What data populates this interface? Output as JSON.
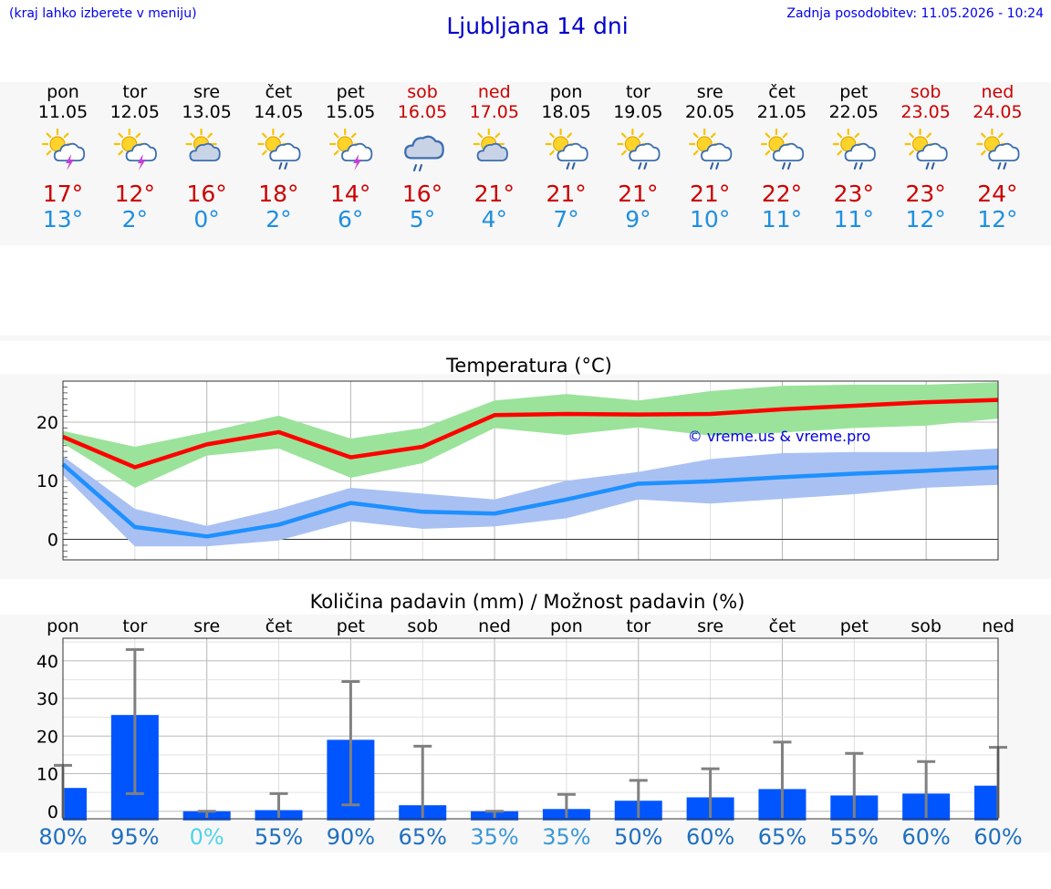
{
  "header": {
    "left_note": "(kraj lahko izberete v meniju)",
    "title": "Ljubljana 14 dni",
    "updated": "Zadnja posodobitev: 11.05.2026 - 10:24"
  },
  "colors": {
    "weekday": "#000000",
    "weekend": "#cc0000",
    "tmax": "#ff0000",
    "tmin": "#1e90ff",
    "tmax_band": "#9be39b",
    "tmin_band": "#a9c1f2",
    "precip_bar": "#0055ff",
    "error_bar": "#808080",
    "pct_dark": "#1f6fbf",
    "pct_mid": "#3b98d6",
    "pct_light": "#4fd3e8"
  },
  "days": [
    {
      "dow": "pon",
      "date": "11.05",
      "weekend": false,
      "icon": "sun-cloud-thunder-icon",
      "tmax": "17°",
      "tmin": "13°"
    },
    {
      "dow": "tor",
      "date": "12.05",
      "weekend": false,
      "icon": "sun-cloud-thunder-icon",
      "tmax": "12°",
      "tmin": "2°"
    },
    {
      "dow": "sre",
      "date": "13.05",
      "weekend": false,
      "icon": "sun-cloud-icon",
      "tmax": "16°",
      "tmin": "0°"
    },
    {
      "dow": "čet",
      "date": "14.05",
      "weekend": false,
      "icon": "sun-cloud-rain-icon",
      "tmax": "18°",
      "tmin": "2°"
    },
    {
      "dow": "pet",
      "date": "15.05",
      "weekend": false,
      "icon": "sun-cloud-thunder-icon",
      "tmax": "14°",
      "tmin": "6°"
    },
    {
      "dow": "sob",
      "date": "16.05",
      "weekend": true,
      "icon": "cloud-rain-icon",
      "tmax": "16°",
      "tmin": "5°"
    },
    {
      "dow": "ned",
      "date": "17.05",
      "weekend": true,
      "icon": "sun-cloud-icon",
      "tmax": "21°",
      "tmin": "4°"
    },
    {
      "dow": "pon",
      "date": "18.05",
      "weekend": false,
      "icon": "sun-cloud-rain-icon",
      "tmax": "21°",
      "tmin": "7°"
    },
    {
      "dow": "tor",
      "date": "19.05",
      "weekend": false,
      "icon": "sun-cloud-rain-icon",
      "tmax": "21°",
      "tmin": "9°"
    },
    {
      "dow": "sre",
      "date": "20.05",
      "weekend": false,
      "icon": "sun-cloud-rain-icon",
      "tmax": "21°",
      "tmin": "10°"
    },
    {
      "dow": "čet",
      "date": "21.05",
      "weekend": false,
      "icon": "sun-cloud-rain-icon",
      "tmax": "22°",
      "tmin": "11°"
    },
    {
      "dow": "pet",
      "date": "22.05",
      "weekend": false,
      "icon": "sun-cloud-rain-icon",
      "tmax": "23°",
      "tmin": "11°"
    },
    {
      "dow": "sob",
      "date": "23.05",
      "weekend": true,
      "icon": "sun-cloud-rain-icon",
      "tmax": "23°",
      "tmin": "12°"
    },
    {
      "dow": "ned",
      "date": "24.05",
      "weekend": true,
      "icon": "sun-cloud-rain-icon",
      "tmax": "24°",
      "tmin": "12°"
    }
  ],
  "chart_data": [
    {
      "type": "line",
      "title": "Temperatura (°C)",
      "x": [
        1,
        2,
        3,
        4,
        5,
        6,
        7,
        8,
        9,
        10,
        11,
        12,
        13,
        14
      ],
      "ylim": [
        -3.5,
        27
      ],
      "yticks": [
        0,
        10,
        20
      ],
      "grid": true,
      "watermark": "© vreme.us & vreme.pro",
      "series": [
        {
          "values": [
            17.5,
            12.3,
            16.2,
            18.3,
            14.0,
            15.8,
            21.2,
            21.4,
            21.3,
            21.4,
            22.2,
            22.8,
            23.4,
            23.8
          ],
          "band_high": [
            18.5,
            15.8,
            18.3,
            21.1,
            17.2,
            19.0,
            23.7,
            24.8,
            23.7,
            25.3,
            26.2,
            26.4,
            26.4,
            26.8
          ],
          "band_low": [
            16.4,
            8.8,
            14.3,
            15.5,
            10.5,
            13.0,
            19.0,
            17.8,
            19.1,
            17.7,
            18.2,
            19.0,
            19.4,
            20.6
          ]
        },
        {
          "values": [
            12.8,
            2.1,
            0.5,
            2.5,
            6.2,
            4.7,
            4.4,
            6.8,
            9.5,
            9.9,
            10.6,
            11.2,
            11.7,
            12.3
          ],
          "band_high": [
            14.2,
            5.2,
            2.3,
            5.2,
            8.8,
            7.8,
            6.8,
            10.0,
            11.5,
            13.7,
            14.7,
            14.9,
            14.9,
            15.5
          ],
          "band_low": [
            11.0,
            -1.2,
            -1.2,
            -0.2,
            3.1,
            1.8,
            2.2,
            3.6,
            6.8,
            6.1,
            6.9,
            7.7,
            8.8,
            9.3
          ]
        }
      ]
    },
    {
      "type": "bar",
      "title": "Količina padavin (mm) / Možnost padavin (%)",
      "categories": [
        "pon",
        "tor",
        "sre",
        "čet",
        "pet",
        "sob",
        "ned",
        "pon",
        "tor",
        "sre",
        "čet",
        "pet",
        "sob",
        "ned"
      ],
      "values": [
        6.2,
        25.6,
        0,
        0.3,
        19.0,
        1.6,
        0,
        0.6,
        2.8,
        3.7,
        5.9,
        4.2,
        4.7,
        6.8
      ],
      "error_high": [
        12.2,
        43.0,
        0,
        4.7,
        34.5,
        17.3,
        0,
        4.5,
        8.2,
        11.3,
        18.4,
        15.4,
        13.2,
        17.0
      ],
      "error_low": [
        0,
        4.7,
        0,
        0,
        1.7,
        0,
        0,
        0,
        0,
        0,
        0,
        0,
        0,
        0
      ],
      "probability": [
        "80%",
        "95%",
        "0%",
        "55%",
        "90%",
        "65%",
        "35%",
        "35%",
        "50%",
        "60%",
        "65%",
        "55%",
        "60%",
        "60%"
      ],
      "ylim": [
        -2,
        46
      ],
      "yticks": [
        0,
        10,
        20,
        30,
        40
      ],
      "grid": true
    }
  ]
}
